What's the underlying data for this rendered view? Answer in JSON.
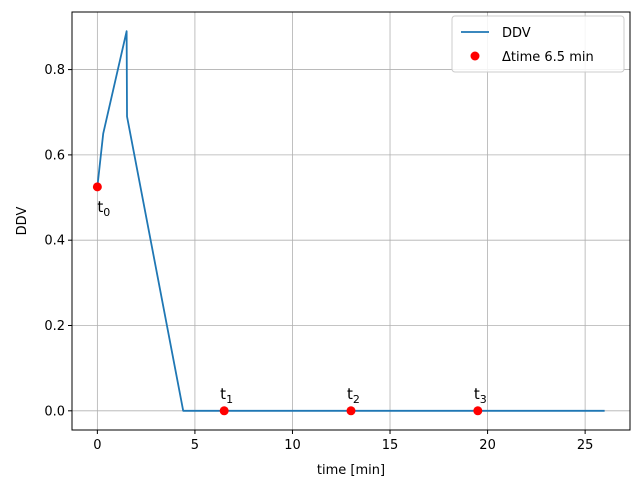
{
  "colors": {
    "line": "#1f77b4",
    "marker": "#ff0000",
    "grid": "#b0b0b0",
    "axes": "#000000",
    "legend_border": "#cccccc"
  },
  "chart_data": {
    "type": "line",
    "xlabel": "time [min]",
    "ylabel": "DDV",
    "xlim": [
      -1.3,
      27.3
    ],
    "ylim": [
      -0.045,
      0.935
    ],
    "xticks": [
      0,
      5,
      10,
      15,
      20,
      25
    ],
    "yticks": [
      0.0,
      0.2,
      0.4,
      0.6,
      0.8
    ],
    "xtick_labels": [
      "0",
      "5",
      "10",
      "15",
      "20",
      "25"
    ],
    "ytick_labels": [
      "0.0",
      "0.2",
      "0.4",
      "0.6",
      "0.8"
    ],
    "grid": true,
    "legend_position": "top-right",
    "series": [
      {
        "name": "DDV",
        "kind": "line",
        "x": [
          0,
          0.3,
          1.5,
          1.52,
          4.4,
          26
        ],
        "y": [
          0.525,
          0.65,
          0.89,
          0.69,
          0.0,
          0.0
        ]
      },
      {
        "name": "Δtime 6.5 min",
        "kind": "scatter",
        "x": [
          0,
          6.5,
          13,
          19.5
        ],
        "y": [
          0.525,
          0.0,
          0.0,
          0.0
        ]
      }
    ],
    "annotations": [
      {
        "base": "t",
        "sub": "0",
        "x": 0,
        "y": 0.525,
        "position": "below"
      },
      {
        "base": "t",
        "sub": "1",
        "x": 6.5,
        "y": 0.0,
        "position": "above"
      },
      {
        "base": "t",
        "sub": "2",
        "x": 13,
        "y": 0.0,
        "position": "above"
      },
      {
        "base": "t",
        "sub": "3",
        "x": 19.5,
        "y": 0.0,
        "position": "above"
      }
    ]
  }
}
